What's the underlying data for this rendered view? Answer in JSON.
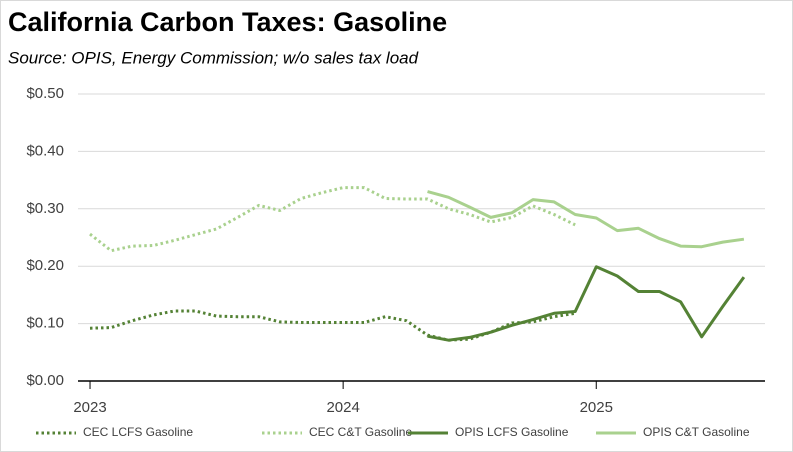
{
  "chart_data": {
    "type": "line",
    "title": "California Carbon Taxes:  Gasoline",
    "subtitle": "Source:  OPIS, Energy Commission; w/o sales tax load",
    "x": [
      0,
      1,
      2,
      3,
      4,
      5,
      6,
      7,
      8,
      9,
      10,
      11,
      12,
      13,
      14,
      15,
      16,
      17,
      18,
      19,
      20,
      21,
      22,
      23,
      24,
      25,
      26,
      27,
      28,
      29,
      30,
      31
    ],
    "xlim": [
      -0.57,
      32.0
    ],
    "xticks": [
      {
        "value": 0,
        "label": "2023"
      },
      {
        "value": 12,
        "label": "2024"
      },
      {
        "value": 24,
        "label": "2025"
      }
    ],
    "ylim": [
      0,
      0.5
    ],
    "yticks": [
      {
        "value": 0,
        "label": "$0.00"
      },
      {
        "value": 0.1,
        "label": "$0.10"
      },
      {
        "value": 0.2,
        "label": "$0.20"
      },
      {
        "value": 0.3,
        "label": "$0.30"
      },
      {
        "value": 0.4,
        "label": "$0.40"
      },
      {
        "value": 0.5,
        "label": "$0.50"
      }
    ],
    "grid": true,
    "legend": "bottom",
    "series": [
      {
        "name": "CEC LCFS Gasoline",
        "color": "#548235",
        "dash": "dotted",
        "values": [
          0.092,
          0.093,
          0.105,
          0.115,
          0.122,
          0.122,
          0.113,
          0.112,
          0.112,
          0.103,
          0.102,
          0.102,
          0.102,
          0.102,
          0.112,
          0.105,
          0.08,
          0.071,
          0.073,
          0.085,
          0.101,
          0.103,
          0.112,
          0.118,
          null,
          null,
          null,
          null,
          null,
          null,
          null,
          null
        ]
      },
      {
        "name": "CEC C&T Gasoline",
        "color": "#a9d18e",
        "dash": "dotted",
        "values": [
          0.256,
          0.227,
          0.235,
          0.236,
          0.245,
          0.255,
          0.265,
          0.285,
          0.306,
          0.297,
          0.318,
          0.328,
          0.337,
          0.337,
          0.318,
          0.317,
          0.317,
          0.3,
          0.29,
          0.277,
          0.285,
          0.305,
          0.29,
          0.272,
          null,
          null,
          null,
          null,
          null,
          null,
          null,
          null
        ]
      },
      {
        "name": "OPIS LCFS Gasoline",
        "color": "#548235",
        "dash": "solid",
        "values": [
          null,
          null,
          null,
          null,
          null,
          null,
          null,
          null,
          null,
          null,
          null,
          null,
          null,
          null,
          null,
          null,
          0.078,
          0.071,
          0.076,
          0.085,
          0.097,
          0.107,
          0.118,
          0.121,
          0.199,
          0.183,
          0.156,
          0.156,
          0.138,
          0.077,
          0.13,
          0.181
        ]
      },
      {
        "name": "OPIS C&T Gasoline",
        "color": "#a9d18e",
        "dash": "solid",
        "values": [
          null,
          null,
          null,
          null,
          null,
          null,
          null,
          null,
          null,
          null,
          null,
          null,
          null,
          null,
          null,
          null,
          0.33,
          0.32,
          0.303,
          0.285,
          0.293,
          0.316,
          0.312,
          0.29,
          0.284,
          0.262,
          0.266,
          0.248,
          0.235,
          0.234,
          0.242,
          0.247
        ]
      }
    ]
  }
}
